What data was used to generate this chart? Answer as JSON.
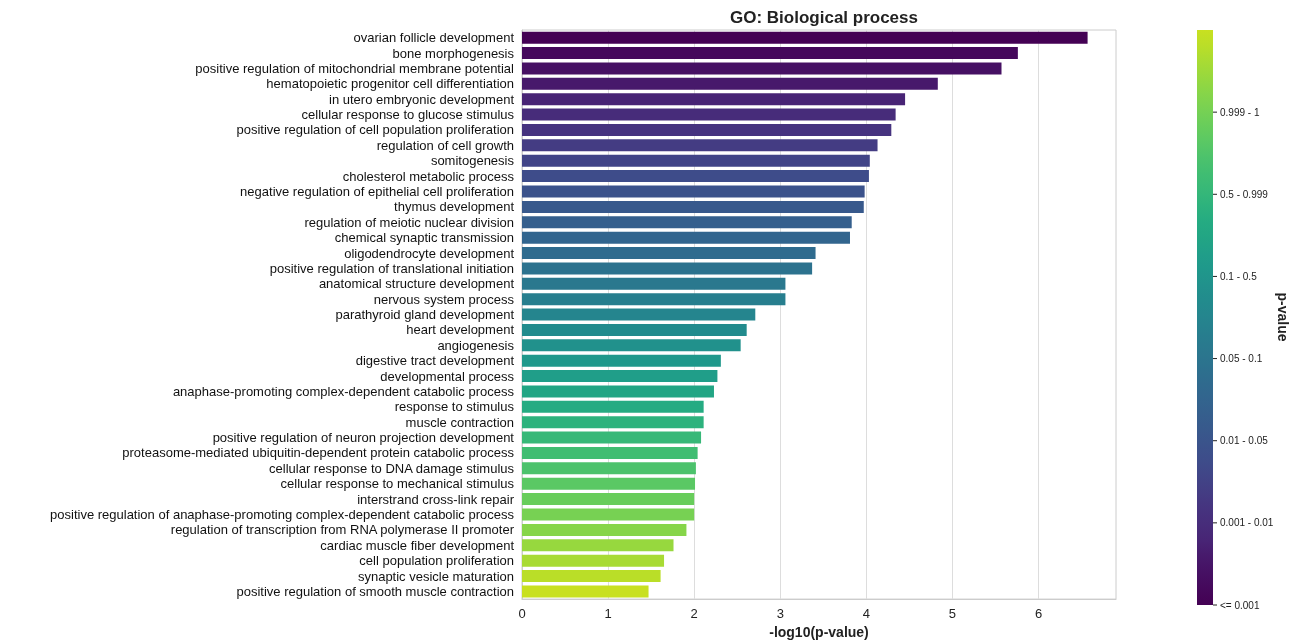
{
  "chart_data": {
    "type": "bar",
    "orientation": "horizontal",
    "title": "GO: Biological process",
    "xlabel": "-log10(p-value)",
    "clabel": "p-value",
    "categories": [
      "ovarian follicle development",
      "bone morphogenesis",
      "positive regulation of mitochondrial membrane potential",
      "hematopoietic progenitor cell differentiation",
      "in utero embryonic development",
      "cellular response to glucose stimulus",
      "positive regulation of cell population proliferation",
      "regulation of cell growth",
      "somitogenesis",
      "cholesterol metabolic process",
      "negative regulation of epithelial cell proliferation",
      "thymus development",
      "regulation of meiotic nuclear division",
      "chemical synaptic transmission",
      "oligodendrocyte development",
      "positive regulation of translational initiation",
      "anatomical structure development",
      "nervous system process",
      "parathyroid gland development",
      "heart development",
      "angiogenesis",
      "digestive tract development",
      "developmental process",
      "anaphase-promoting complex-dependent catabolic process",
      "response to stimulus",
      "muscle contraction",
      "positive regulation of neuron projection development",
      "proteasome-mediated ubiquitin-dependent protein catabolic process",
      "cellular response to DNA damage stimulus",
      "cellular response to mechanical stimulus",
      "interstrand cross-link repair",
      "positive regulation of anaphase-promoting complex-dependent catabolic process",
      "regulation of transcription from RNA polymerase II promoter",
      "cardiac muscle fiber development",
      "cell population proliferation",
      "synaptic vesicle maturation",
      "positive regulation of smooth muscle contraction"
    ],
    "values": [
      6.57,
      5.76,
      5.57,
      4.83,
      4.45,
      4.34,
      4.29,
      4.13,
      4.04,
      4.03,
      3.98,
      3.97,
      3.83,
      3.81,
      3.41,
      3.37,
      3.06,
      3.06,
      2.71,
      2.61,
      2.54,
      2.31,
      2.27,
      2.23,
      2.11,
      2.11,
      2.08,
      2.04,
      2.02,
      2.01,
      2.0,
      2.0,
      1.91,
      1.76,
      1.65,
      1.61,
      1.47
    ],
    "colors": [
      "#440154",
      "#45085b",
      "#461063",
      "#47196b",
      "#482475",
      "#472c7a",
      "#46337f",
      "#443c83",
      "#414487",
      "#3e4c8a",
      "#3b528b",
      "#38598c",
      "#355f8d",
      "#32658e",
      "#2f6b8e",
      "#2c728e",
      "#2a788e",
      "#277e8e",
      "#25858e",
      "#228b8d",
      "#21918c",
      "#1f988b",
      "#209e89",
      "#22a584",
      "#25ab82",
      "#2db27d",
      "#37b878",
      "#40bd72",
      "#4cc26c",
      "#5ac864",
      "#68cd5b",
      "#77d153",
      "#86d549",
      "#97d83e",
      "#a8db34",
      "#bade28",
      "#c8e020"
    ],
    "xlim": [
      0,
      6.9
    ],
    "xticks": [
      0,
      1,
      2,
      3,
      4,
      5,
      6
    ],
    "grid": "x",
    "clim": [
      0,
      7
    ],
    "cticks": [
      {
        "value": 0,
        "label": "<= 0.001"
      },
      {
        "value": 1,
        "label": "0.001 - 0.01"
      },
      {
        "value": 2,
        "label": "0.01 - 0.05"
      },
      {
        "value": 3,
        "label": "0.05 - 0.1"
      },
      {
        "value": 4,
        "label": "0.1 - 0.5"
      },
      {
        "value": 5,
        "label": "0.5 - 0.999"
      },
      {
        "value": 6,
        "label": "0.999 - 1"
      }
    ]
  }
}
